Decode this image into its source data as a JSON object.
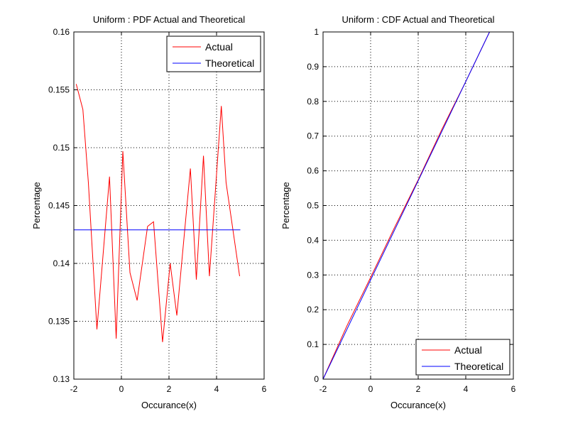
{
  "chart_data": [
    {
      "type": "line",
      "title": "Uniform : PDF Actual and Theoretical",
      "xlabel": "Occurance(x)",
      "ylabel": "Percentage",
      "xlim": [
        -2,
        6
      ],
      "ylim": [
        0.13,
        0.16
      ],
      "xticks": [
        -2,
        0,
        2,
        4,
        6
      ],
      "yticks": [
        0.13,
        0.135,
        0.14,
        0.145,
        0.15,
        0.155,
        0.16
      ],
      "xtick_labels": [
        "-2",
        "0",
        "2",
        "4",
        "6"
      ],
      "ytick_labels": [
        "0.13",
        "0.135",
        "0.14",
        "0.145",
        "0.15",
        "0.155",
        "0.16"
      ],
      "grid": true,
      "legend_position": "top-right",
      "series": [
        {
          "name": "Actual",
          "color": "#ff0000",
          "x": [
            -1.9,
            -1.62,
            -1.39,
            -1.03,
            -0.5,
            -0.22,
            0.06,
            0.36,
            0.66,
            1.1,
            1.35,
            1.73,
            2.05,
            2.33,
            2.9,
            3.15,
            3.45,
            3.7,
            4.2,
            4.4,
            4.97
          ],
          "y": [
            0.1555,
            0.1533,
            0.147,
            0.1343,
            0.1475,
            0.1335,
            0.1497,
            0.1392,
            0.1368,
            0.1432,
            0.1436,
            0.1332,
            0.14,
            0.1355,
            0.1482,
            0.1386,
            0.1493,
            0.1389,
            0.1536,
            0.147,
            0.1389
          ]
        },
        {
          "name": "Theoretical",
          "color": "#0000ff",
          "x": [
            -2,
            5
          ],
          "y": [
            0.1429,
            0.1429
          ]
        }
      ]
    },
    {
      "type": "line",
      "title": "Uniform : CDF Actual and Theoretical",
      "xlabel": "Occurance(x)",
      "ylabel": "Percentage",
      "xlim": [
        -2,
        6
      ],
      "ylim": [
        0,
        1
      ],
      "xticks": [
        -2,
        0,
        2,
        4,
        6
      ],
      "yticks": [
        0,
        0.1,
        0.2,
        0.3,
        0.4,
        0.5,
        0.6,
        0.7,
        0.8,
        0.9,
        1
      ],
      "xtick_labels": [
        "-2",
        "0",
        "2",
        "4",
        "6"
      ],
      "ytick_labels": [
        "0",
        "0.1",
        "0.2",
        "0.3",
        "0.4",
        "0.5",
        "0.6",
        "0.7",
        "0.8",
        "0.9",
        "1"
      ],
      "grid": true,
      "legend_position": "bottom-right",
      "series": [
        {
          "name": "Actual",
          "color": "#ff0000",
          "x": [
            -2,
            -1,
            0,
            1,
            2,
            3,
            4,
            5
          ],
          "y": [
            0.0,
            0.153,
            0.293,
            0.436,
            0.574,
            0.72,
            0.857,
            1.0
          ]
        },
        {
          "name": "Theoretical",
          "color": "#0000ff",
          "x": [
            -2,
            5
          ],
          "y": [
            0.0,
            1.0
          ]
        }
      ]
    }
  ]
}
